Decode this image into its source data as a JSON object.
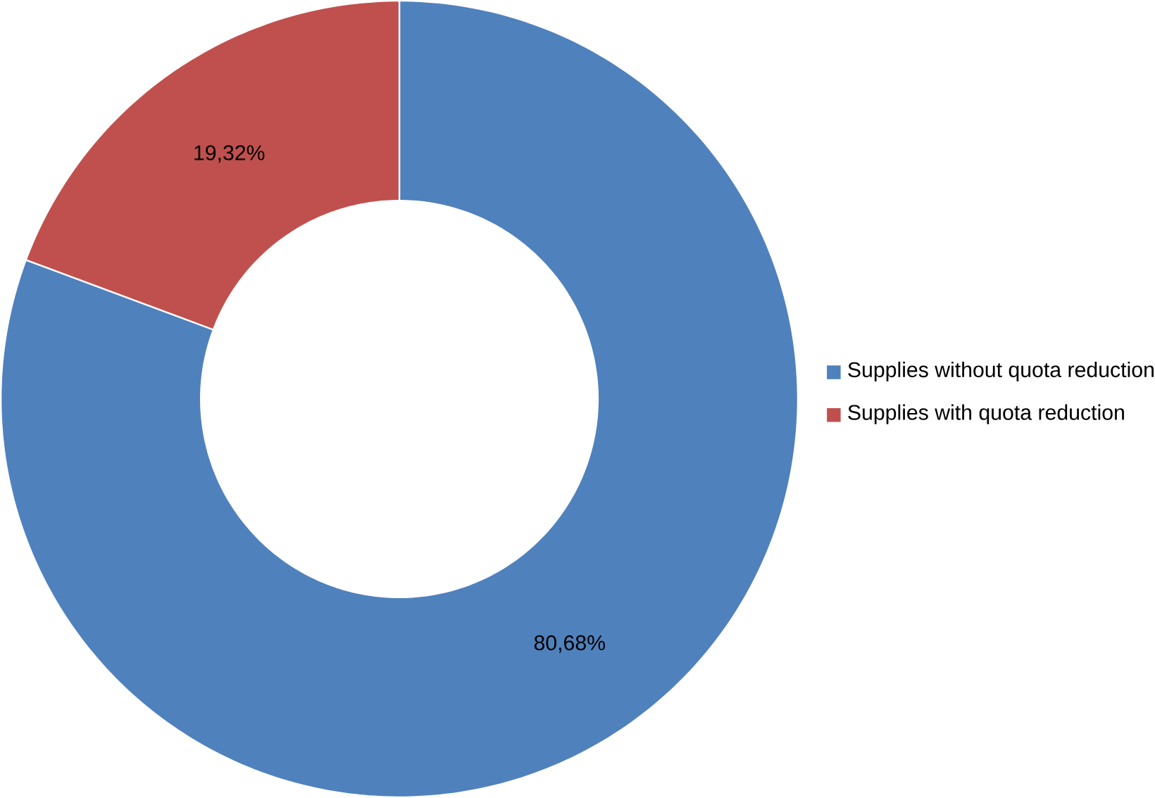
{
  "chart_data": {
    "type": "donut",
    "categories": [
      "Supplies without quota reduction",
      "Supplies with quota reduction"
    ],
    "values": [
      80.68,
      19.32
    ],
    "colors": [
      "#4f81bd",
      "#c0504d"
    ],
    "value_labels": [
      "80,68%",
      "19,32%"
    ],
    "legend": "right"
  }
}
